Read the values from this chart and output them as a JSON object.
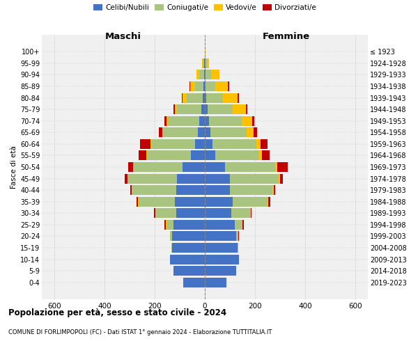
{
  "age_groups": [
    "0-4",
    "5-9",
    "10-14",
    "15-19",
    "20-24",
    "25-29",
    "30-34",
    "35-39",
    "40-44",
    "45-49",
    "50-54",
    "55-59",
    "60-64",
    "65-69",
    "70-74",
    "75-79",
    "80-84",
    "85-89",
    "90-94",
    "95-99",
    "100+"
  ],
  "birth_years": [
    "2019-2023",
    "2014-2018",
    "2009-2013",
    "2004-2008",
    "1999-2003",
    "1994-1998",
    "1989-1993",
    "1984-1988",
    "1979-1983",
    "1974-1978",
    "1969-1973",
    "1964-1968",
    "1959-1963",
    "1954-1958",
    "1949-1953",
    "1944-1948",
    "1939-1943",
    "1934-1938",
    "1929-1933",
    "1924-1928",
    "≤ 1923"
  ],
  "colors": {
    "celibi": "#4472c4",
    "coniugati": "#a9c47f",
    "vedovi": "#ffc000",
    "divorziati": "#c00000"
  },
  "maschi": {
    "celibi": [
      85,
      125,
      140,
      130,
      130,
      125,
      115,
      120,
      115,
      110,
      90,
      55,
      40,
      28,
      22,
      15,
      8,
      5,
      3,
      2,
      0
    ],
    "coniugati": [
      0,
      0,
      0,
      2,
      8,
      28,
      80,
      145,
      175,
      195,
      195,
      175,
      175,
      140,
      125,
      95,
      65,
      35,
      18,
      5,
      0
    ],
    "vedovi": [
      0,
      0,
      0,
      0,
      0,
      2,
      2,
      2,
      2,
      2,
      2,
      2,
      2,
      2,
      5,
      10,
      15,
      18,
      12,
      4,
      0
    ],
    "divorziati": [
      0,
      0,
      0,
      0,
      2,
      5,
      5,
      5,
      5,
      12,
      18,
      32,
      42,
      12,
      10,
      6,
      5,
      3,
      0,
      0,
      0
    ]
  },
  "femmine": {
    "nubili": [
      85,
      125,
      135,
      130,
      125,
      120,
      105,
      110,
      100,
      100,
      80,
      42,
      30,
      22,
      18,
      10,
      5,
      3,
      2,
      2,
      0
    ],
    "coniugate": [
      0,
      0,
      0,
      2,
      8,
      28,
      75,
      140,
      170,
      195,
      200,
      175,
      175,
      145,
      130,
      100,
      68,
      38,
      22,
      6,
      0
    ],
    "vedove": [
      0,
      0,
      0,
      0,
      0,
      2,
      2,
      2,
      5,
      5,
      8,
      10,
      18,
      28,
      40,
      55,
      58,
      52,
      35,
      10,
      2
    ],
    "divorziate": [
      0,
      0,
      0,
      0,
      2,
      5,
      5,
      8,
      5,
      12,
      42,
      32,
      28,
      12,
      10,
      5,
      5,
      3,
      0,
      0,
      0
    ]
  },
  "xlim": 650,
  "title": "Popolazione per età, sesso e stato civile - 2024",
  "subtitle": "COMUNE DI FORLIMPOPOLI (FC) - Dati ISTAT 1° gennaio 2024 - Elaborazione TUTTITALIA.IT",
  "ylabel_left": "Fasce di età",
  "xlabel_left": "Maschi",
  "xlabel_right": "Femmine",
  "bg_color": "#f0f0f0",
  "grid_color": "#cccccc"
}
